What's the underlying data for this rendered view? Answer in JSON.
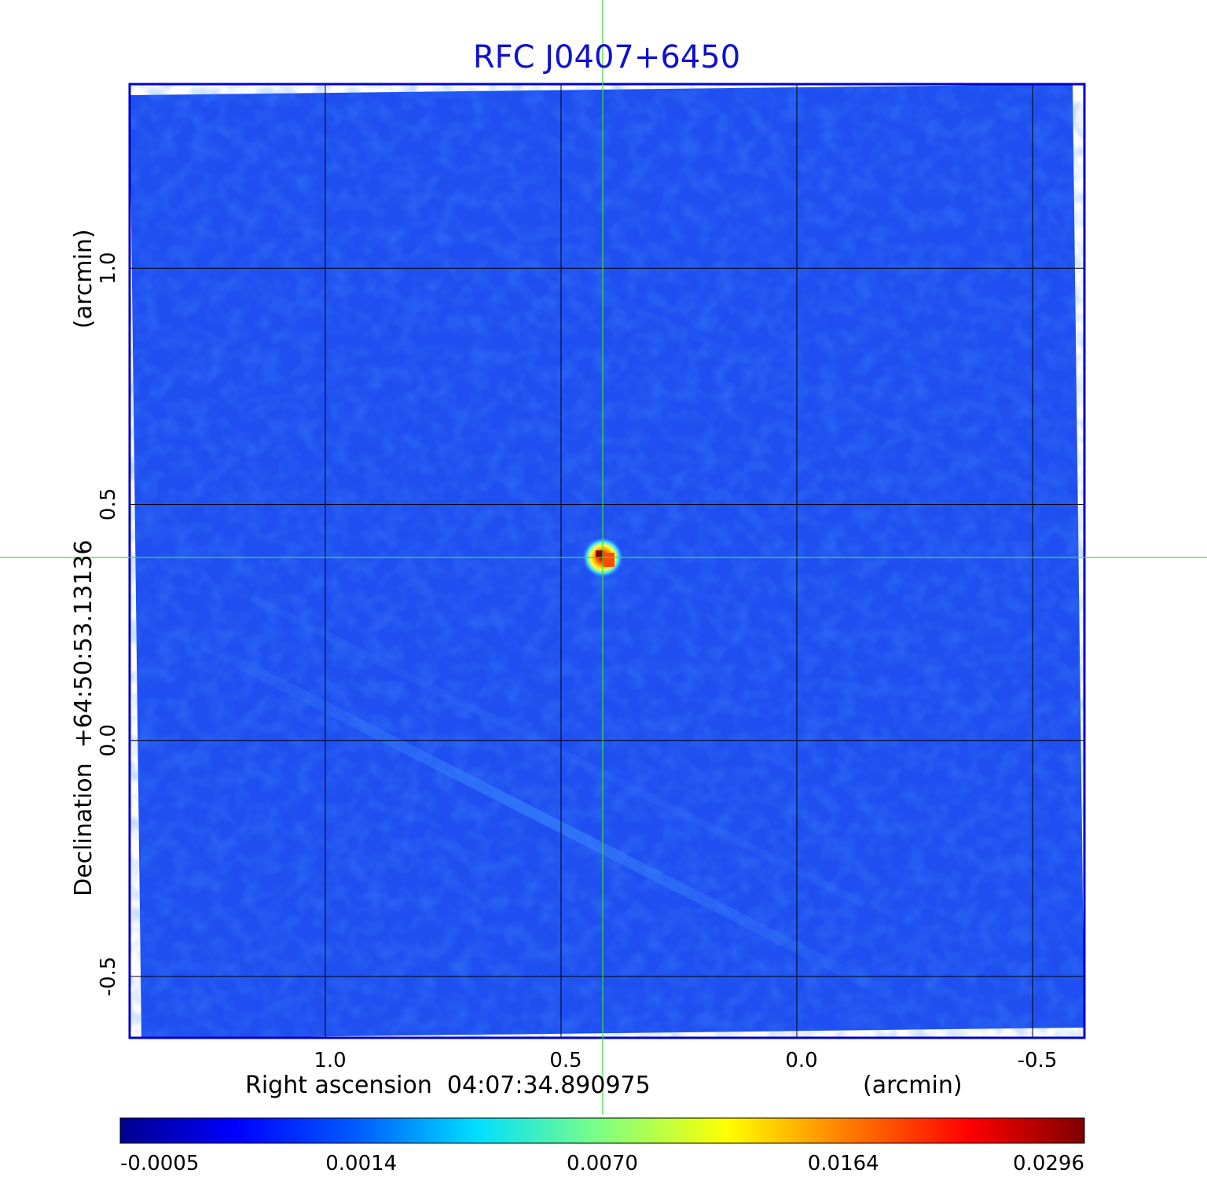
{
  "chart_data": {
    "type": "heatmap",
    "title": "RFC J0407+6450",
    "xlabel": "Right ascension  04:07:34.890975",
    "xunit": "(arcmin)",
    "ylabel": "Declination  +64:50:53.13136",
    "yunit": "(arcmin)",
    "x_ticks": [
      1.0,
      0.5,
      0.0,
      -0.5
    ],
    "x_tick_labels": [
      "1.0",
      "0.5",
      "0.0",
      "-0.5"
    ],
    "y_ticks": [
      1.0,
      0.5,
      0.0,
      -0.5
    ],
    "y_tick_labels": [
      "1.0",
      "0.5",
      "0.0",
      "-0.5"
    ],
    "xlim": [
      1.415,
      -0.61
    ],
    "ylim": [
      -0.63,
      1.39
    ],
    "crosshair": {
      "x": 0.41,
      "y": 0.39
    },
    "source_peak": {
      "x": 0.41,
      "y": 0.39,
      "value": 0.0296
    },
    "colorbar": {
      "colormap": "jet",
      "tick_labels": [
        "-0.0005",
        "0.0014",
        "0.0070",
        "0.0164",
        "0.0296"
      ]
    },
    "grid": true
  },
  "colors": {
    "title": "#1010d0",
    "frame": "#0000c8",
    "crosshair": "#3ddc3d",
    "background_map": "#2050f0"
  }
}
